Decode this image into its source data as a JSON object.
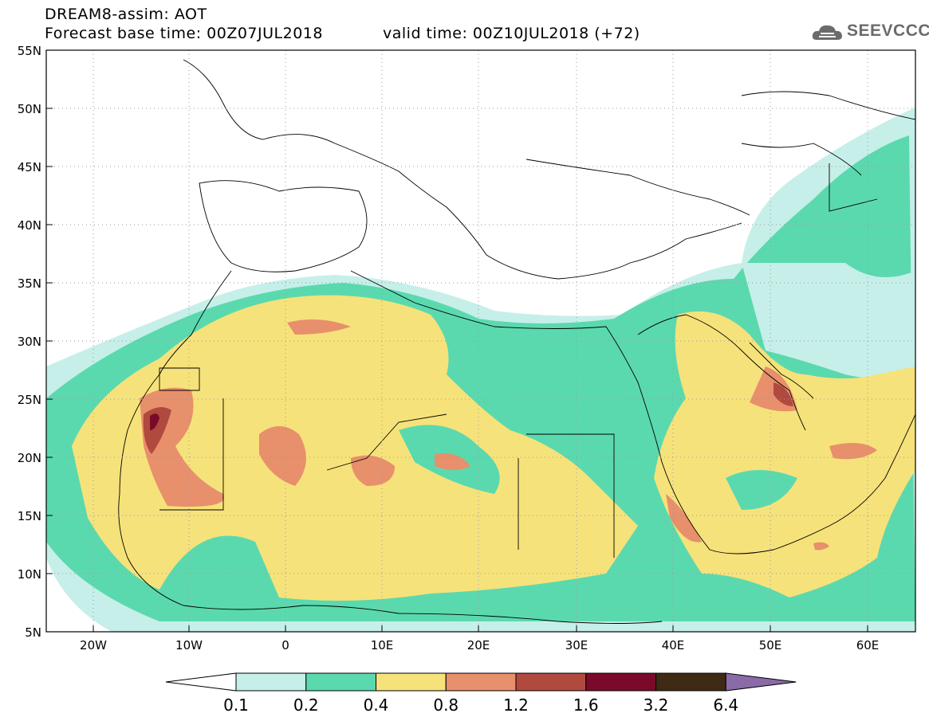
{
  "header": {
    "title": "DREAM8-assim: AOT",
    "base_time": "Forecast base time: 00Z07JUL2018",
    "valid_time": "valid time: 00Z10JUL2018 (+72)",
    "logo": "SEEVCCC"
  },
  "map": {
    "variable": "AOT",
    "projection": "lat-lon",
    "lon_range": [
      -25,
      65
    ],
    "lat_range": [
      5,
      55
    ],
    "lat_labels": [
      "55N",
      "50N",
      "45N",
      "40N",
      "35N",
      "30N",
      "25N",
      "20N",
      "15N",
      "10N",
      "5N"
    ],
    "lon_labels": [
      "20W",
      "10W",
      "0",
      "10E",
      "20E",
      "30E",
      "40E",
      "50E",
      "60E"
    ],
    "grid": "dotted"
  },
  "colorbar": {
    "levels": [
      "0.1",
      "0.2",
      "0.4",
      "0.8",
      "1.2",
      "1.6",
      "3.2",
      "6.4"
    ],
    "colors": [
      "#ffffff",
      "#c6efe9",
      "#5bd9ae",
      "#f6e27a",
      "#e88f6c",
      "#b04a3e",
      "#7b0a2a",
      "#3f2a15",
      "#8b6aa8"
    ]
  }
}
